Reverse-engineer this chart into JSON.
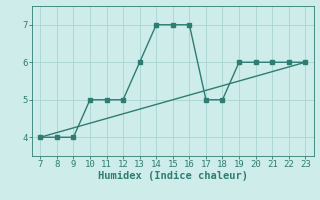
{
  "zigzag_x": [
    7,
    8,
    9,
    10,
    11,
    12,
    13,
    14,
    15,
    16,
    17,
    18,
    19,
    20,
    21,
    22,
    23
  ],
  "zigzag_y": [
    4,
    4,
    4,
    5,
    5,
    5,
    6,
    7,
    7,
    7,
    5,
    5,
    6,
    6,
    6,
    6,
    6
  ],
  "line_x": [
    7,
    23
  ],
  "line_y": [
    4.0,
    6.0
  ],
  "color": "#2e7d72",
  "background_color": "#ceecea",
  "grid_color": "#aad4d0",
  "xlabel": "Humidex (Indice chaleur)",
  "xlim": [
    6.5,
    23.5
  ],
  "ylim": [
    3.5,
    7.5
  ],
  "xticks": [
    7,
    8,
    9,
    10,
    11,
    12,
    13,
    14,
    15,
    16,
    17,
    18,
    19,
    20,
    21,
    22,
    23
  ],
  "yticks": [
    4,
    5,
    6,
    7
  ],
  "xlabel_fontsize": 7.5,
  "tick_fontsize": 6.5,
  "marker_size": 2.8,
  "line_width": 1.0
}
